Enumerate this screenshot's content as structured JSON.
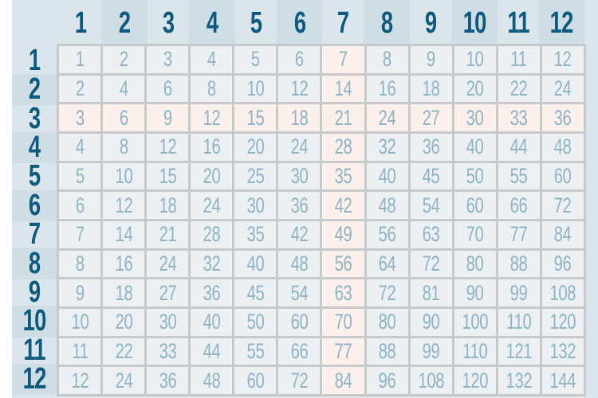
{
  "colors": {
    "header_text": "#0d5a7e",
    "cell_text": "#8db3c4",
    "cell_bg": "#ecf0f3",
    "highlight_bg": "#fbf0eb",
    "grid_line": "#c8c9cb",
    "band_light": "#dbe5ec",
    "band_dark": "#cfdde5"
  },
  "highlight": {
    "row": 3,
    "column": 7
  },
  "column_headers": [
    "1",
    "2",
    "3",
    "4",
    "5",
    "6",
    "7",
    "8",
    "9",
    "10",
    "11",
    "12"
  ],
  "row_headers": [
    "1",
    "2",
    "3",
    "4",
    "5",
    "6",
    "7",
    "8",
    "9",
    "10",
    "11",
    "12"
  ],
  "chart_data": {
    "type": "table",
    "rows": [
      [
        "1",
        "2",
        "3",
        "4",
        "5",
        "6",
        "7",
        "8",
        "9",
        "10",
        "11",
        "12"
      ],
      [
        "2",
        "4",
        "6",
        "8",
        "10",
        "12",
        "14",
        "16",
        "18",
        "20",
        "22",
        "24"
      ],
      [
        "3",
        "6",
        "9",
        "12",
        "15",
        "18",
        "21",
        "24",
        "27",
        "30",
        "33",
        "36"
      ],
      [
        "4",
        "8",
        "12",
        "16",
        "20",
        "24",
        "28",
        "32",
        "36",
        "40",
        "44",
        "48"
      ],
      [
        "5",
        "10",
        "15",
        "20",
        "25",
        "30",
        "35",
        "40",
        "45",
        "50",
        "55",
        "60"
      ],
      [
        "6",
        "12",
        "18",
        "24",
        "30",
        "36",
        "42",
        "48",
        "54",
        "60",
        "66",
        "72"
      ],
      [
        "7",
        "14",
        "21",
        "28",
        "35",
        "42",
        "49",
        "56",
        "63",
        "70",
        "77",
        "84"
      ],
      [
        "8",
        "16",
        "24",
        "32",
        "40",
        "48",
        "56",
        "64",
        "72",
        "80",
        "88",
        "96"
      ],
      [
        "9",
        "18",
        "27",
        "36",
        "45",
        "54",
        "63",
        "72",
        "81",
        "90",
        "99",
        "108"
      ],
      [
        "10",
        "20",
        "30",
        "40",
        "50",
        "60",
        "70",
        "80",
        "90",
        "100",
        "110",
        "120"
      ],
      [
        "11",
        "22",
        "33",
        "44",
        "55",
        "66",
        "77",
        "88",
        "99",
        "110",
        "121",
        "132"
      ],
      [
        "12",
        "24",
        "36",
        "48",
        "60",
        "72",
        "84",
        "96",
        "108",
        "120",
        "132",
        "144"
      ]
    ]
  }
}
